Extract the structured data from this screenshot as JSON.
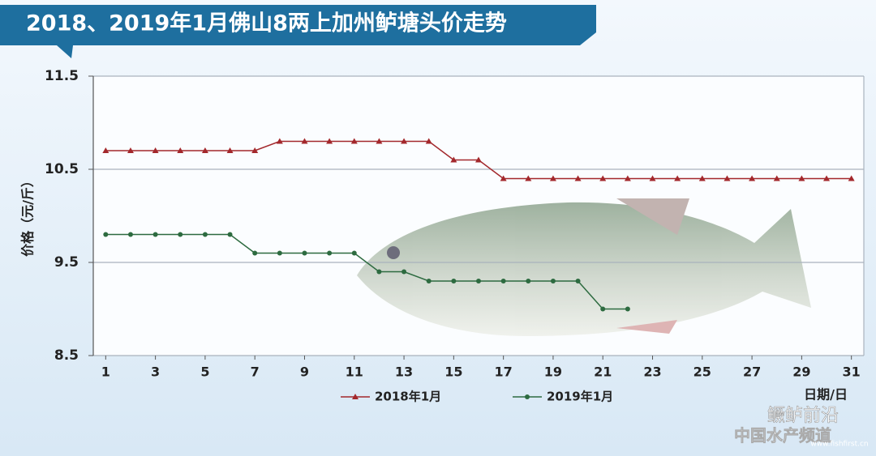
{
  "chart_data": {
    "type": "line",
    "title": "2018、2019年1月佛山8两上加州鲈塘头价走势",
    "y_label": "价格（元/斤）",
    "x_label": "日期/日",
    "x": [
      1,
      2,
      3,
      4,
      5,
      6,
      7,
      8,
      9,
      10,
      11,
      12,
      13,
      14,
      15,
      16,
      17,
      18,
      19,
      20,
      21,
      22,
      23,
      24,
      25,
      26,
      27,
      28,
      29,
      30,
      31
    ],
    "series": [
      {
        "name": "2018年1月",
        "color": "#a3282c",
        "marker": "triangle",
        "values": [
          10.7,
          10.7,
          10.7,
          10.7,
          10.7,
          10.7,
          10.7,
          10.8,
          10.8,
          10.8,
          10.8,
          10.8,
          10.8,
          10.8,
          10.6,
          10.6,
          10.4,
          10.4,
          10.4,
          10.4,
          10.4,
          10.4,
          10.4,
          10.4,
          10.4,
          10.4,
          10.4,
          10.4,
          10.4,
          10.4,
          10.4
        ]
      },
      {
        "name": "2019年1月",
        "color": "#2d6b40",
        "marker": "circle",
        "values": [
          9.8,
          9.8,
          9.8,
          9.8,
          9.8,
          9.8,
          9.6,
          9.6,
          9.6,
          9.6,
          9.6,
          9.4,
          9.4,
          9.3,
          9.3,
          9.3,
          9.3,
          9.3,
          9.3,
          9.3,
          9.0,
          9.0,
          null,
          null,
          null,
          null,
          null,
          null,
          null,
          null,
          null
        ]
      }
    ],
    "xlim": [
      0.5,
      31.5
    ],
    "xticks": [
      1,
      3,
      5,
      7,
      9,
      11,
      13,
      15,
      17,
      19,
      21,
      23,
      25,
      27,
      29,
      31
    ],
    "ylim": [
      8.5,
      11.5
    ],
    "yticks": [
      8.5,
      9.5,
      10.5,
      11.5
    ],
    "grid": true,
    "legend": "bottom",
    "watermark": {
      "name": "鳜鲈前沿",
      "channel": "中国水产频道",
      "site": "www.fishfirst.cn"
    }
  }
}
